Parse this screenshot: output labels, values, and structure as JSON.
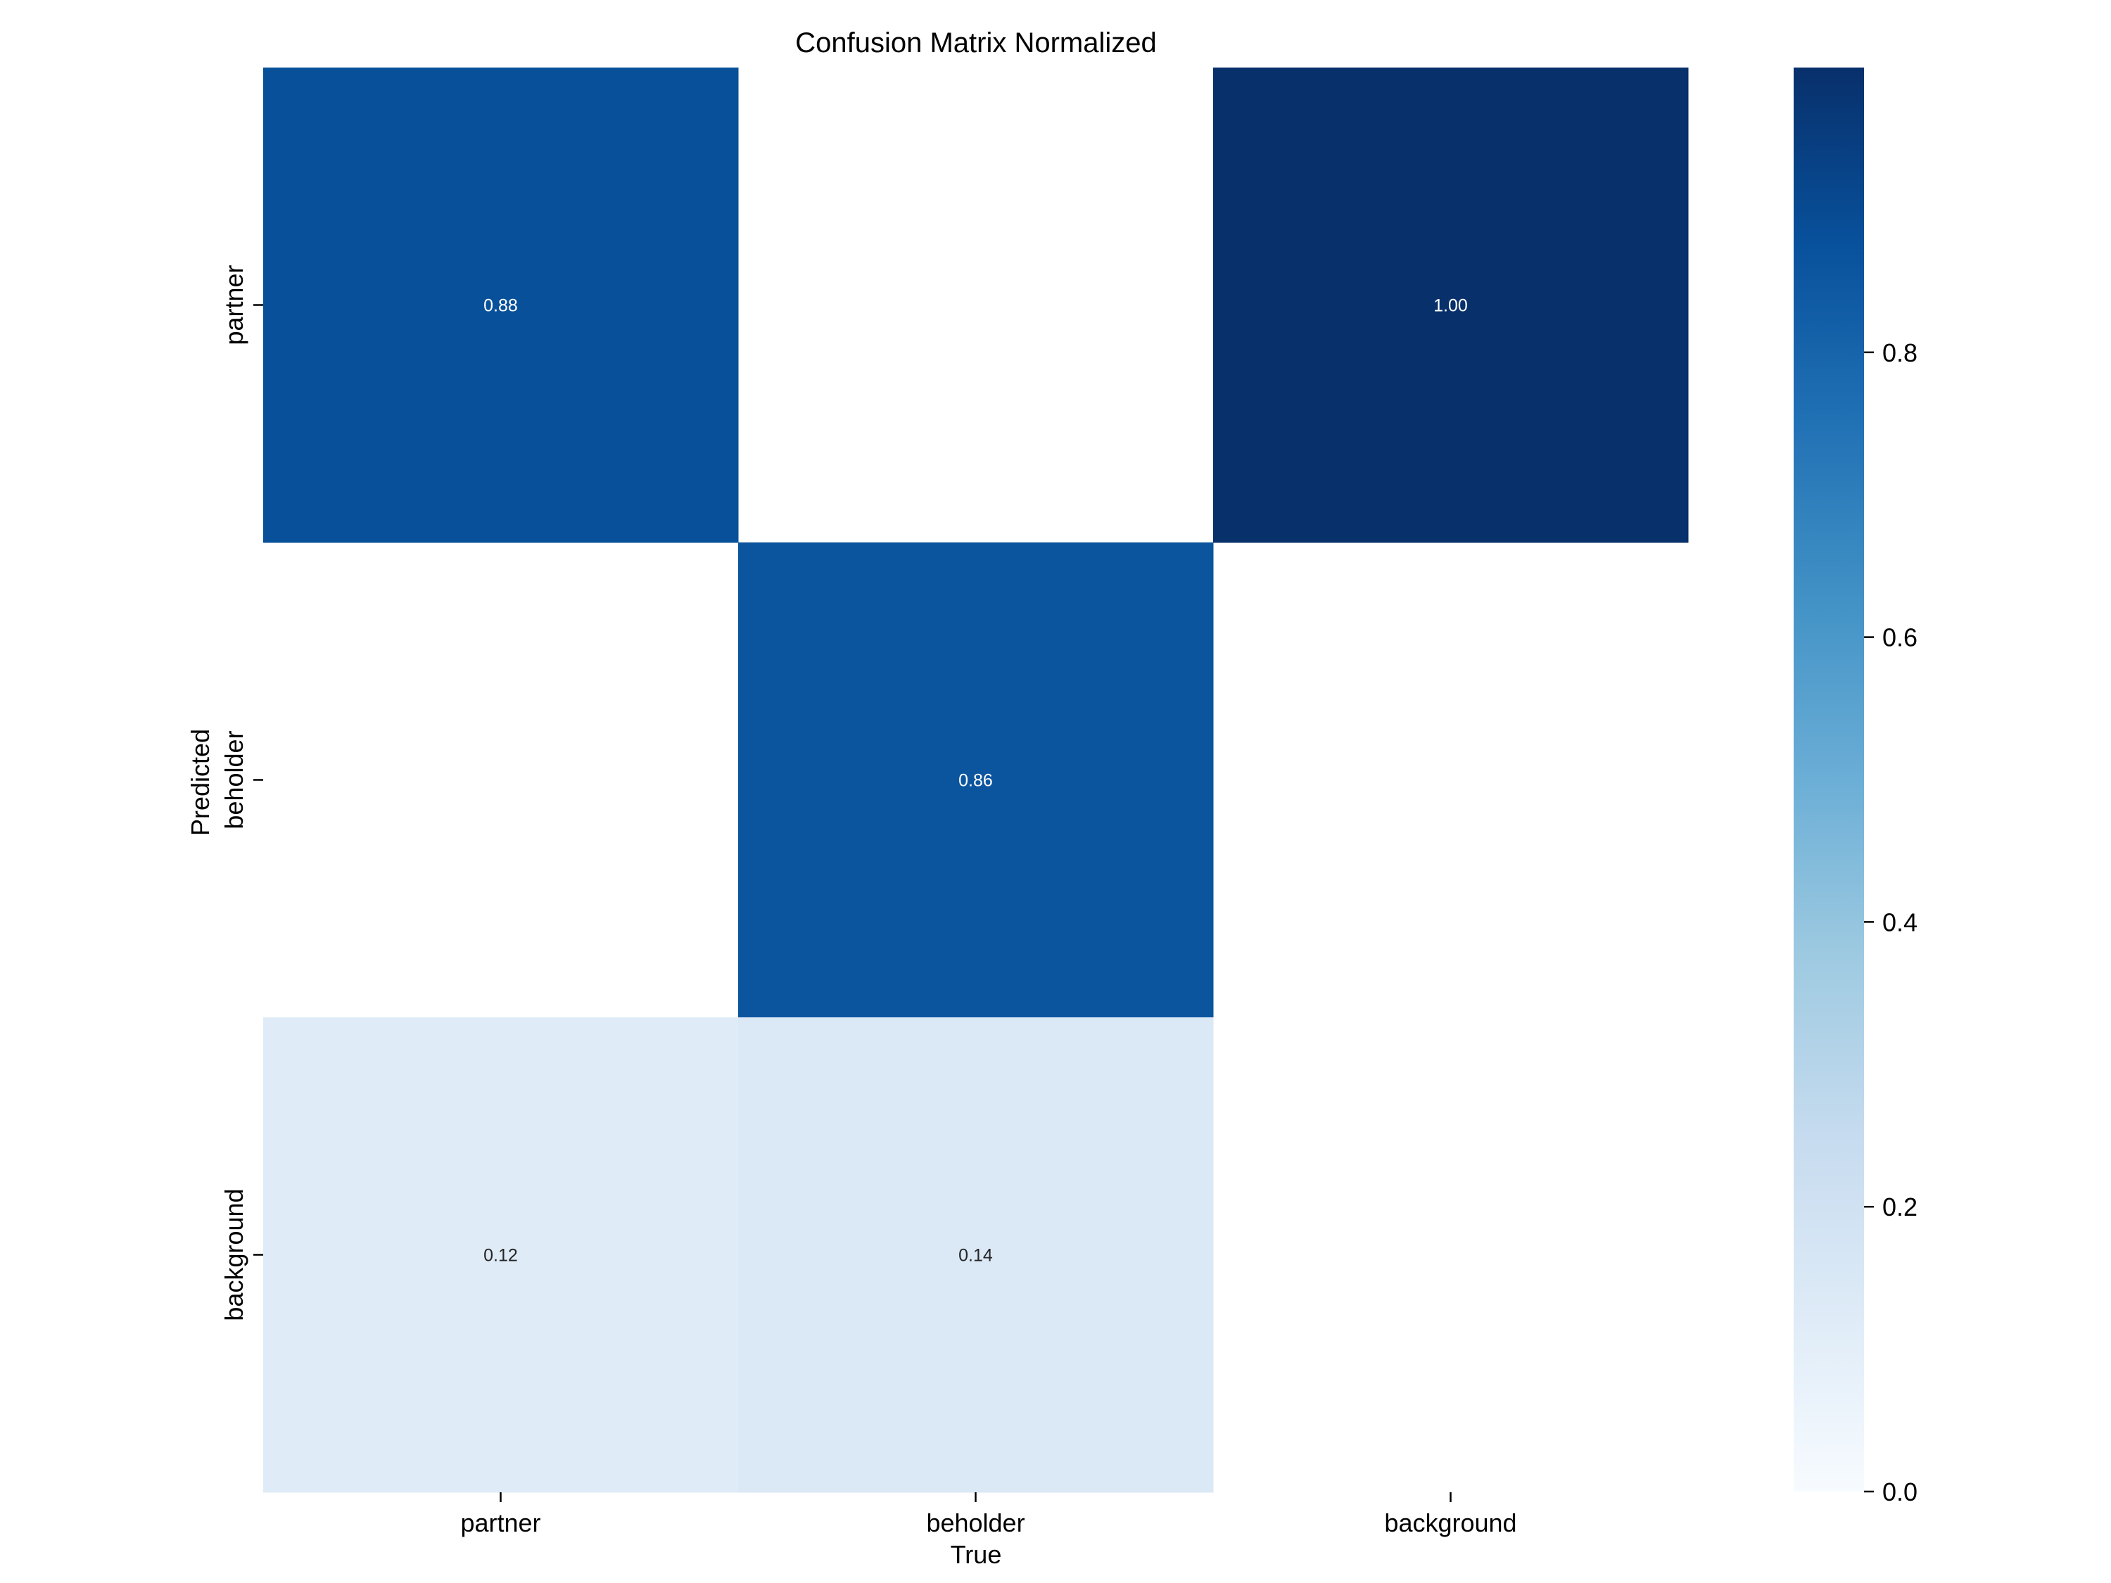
{
  "chart_data": {
    "type": "heatmap",
    "title": "Confusion Matrix Normalized",
    "xlabel": "True",
    "ylabel": "Predicted",
    "x_categories": [
      "partner",
      "beholder",
      "background"
    ],
    "y_categories": [
      "partner",
      "beholder",
      "background"
    ],
    "values": [
      [
        0.88,
        null,
        1.0
      ],
      [
        null,
        0.86,
        null
      ],
      [
        0.12,
        0.14,
        null
      ]
    ],
    "cell_labels": [
      [
        "0.88",
        "",
        "1.00"
      ],
      [
        "",
        "0.86",
        ""
      ],
      [
        "0.12",
        "0.14",
        ""
      ]
    ],
    "colormap": "Blues",
    "colorbar": {
      "range": [
        0,
        1
      ],
      "ticks": [
        0.0,
        0.2,
        0.4,
        0.6,
        0.8
      ],
      "tick_labels": [
        "0.0",
        "0.2",
        "0.4",
        "0.6",
        "0.8"
      ]
    },
    "grid": false
  }
}
